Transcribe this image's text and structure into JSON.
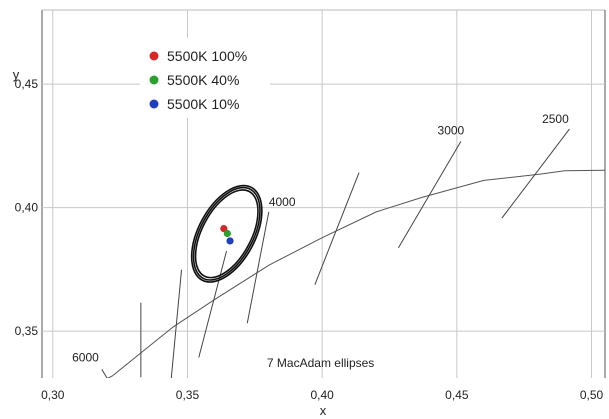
{
  "chart_data": {
    "type": "scatter",
    "title": "",
    "xlabel": "x",
    "ylabel": "y",
    "xlim": [
      0.296,
      0.505
    ],
    "ylim": [
      0.331,
      0.48
    ],
    "x_ticks": [
      {
        "value": 0.3,
        "label": "0,30"
      },
      {
        "value": 0.35,
        "label": "0,35"
      },
      {
        "value": 0.4,
        "label": "0,40"
      },
      {
        "value": 0.45,
        "label": "0,45"
      },
      {
        "value": 0.5,
        "label": "0,50"
      }
    ],
    "y_ticks": [
      {
        "value": 0.35,
        "label": "0,35"
      },
      {
        "value": 0.4,
        "label": "0,40"
      },
      {
        "value": 0.45,
        "label": "0,45"
      }
    ],
    "grid": true,
    "legend_position": "top-left",
    "series": [
      {
        "name": "5500K 100%",
        "color": "#d62728",
        "points": [
          {
            "x": 0.3635,
            "y": 0.3915
          }
        ]
      },
      {
        "name": "5500K 40%",
        "color": "#2ca02c",
        "points": [
          {
            "x": 0.3648,
            "y": 0.3895
          }
        ]
      },
      {
        "name": "5500K 10%",
        "color": "#1f3fbf",
        "points": [
          {
            "x": 0.3658,
            "y": 0.3865
          }
        ]
      }
    ],
    "planckian_locus": {
      "x": [
        0.296,
        0.31,
        0.3221,
        0.335,
        0.3447,
        0.36,
        0.3804,
        0.4,
        0.42,
        0.4369,
        0.46,
        0.4813,
        0.49,
        0.505
      ],
      "y": [
        0.3185,
        0.3255,
        0.3318,
        0.3432,
        0.3517,
        0.3627,
        0.3768,
        0.3878,
        0.3982,
        0.4041,
        0.411,
        0.4136,
        0.4149,
        0.4151
      ]
    },
    "isotherms": [
      {
        "label": "6000",
        "x1": 0.3182,
        "y1": 0.3345,
        "x2": 0.3226,
        "y2": 0.3265
      },
      {
        "label": "",
        "x1": 0.3327,
        "y1": 0.3615,
        "x2": 0.3327,
        "y2": 0.3313
      },
      {
        "label": "",
        "x1": 0.3478,
        "y1": 0.3748,
        "x2": 0.3438,
        "y2": 0.3288
      },
      {
        "label": "",
        "x1": 0.3645,
        "y1": 0.3824,
        "x2": 0.3542,
        "y2": 0.3393
      },
      {
        "label": "4000",
        "x1": 0.3802,
        "y1": 0.3983,
        "x2": 0.3722,
        "y2": 0.3532
      },
      {
        "label": "",
        "x1": 0.4137,
        "y1": 0.4142,
        "x2": 0.3973,
        "y2": 0.3688
      },
      {
        "label": "3000",
        "x1": 0.4515,
        "y1": 0.4268,
        "x2": 0.4283,
        "y2": 0.3837
      },
      {
        "label": "2500",
        "x1": 0.4918,
        "y1": 0.4318,
        "x2": 0.4667,
        "y2": 0.3957
      }
    ],
    "ellipses": {
      "center": {
        "x": 0.3646,
        "y": 0.3894
      },
      "rotation_deg": 62,
      "semi_axis_a_x": [
        0.0178,
        0.0187,
        0.0195
      ],
      "semi_axis_b_x": [
        0.0091,
        0.0098,
        0.0105
      ]
    },
    "annotations": [
      {
        "text": "7  MacAdam ellipses",
        "x": 0.3795,
        "y": 0.3355
      }
    ]
  }
}
